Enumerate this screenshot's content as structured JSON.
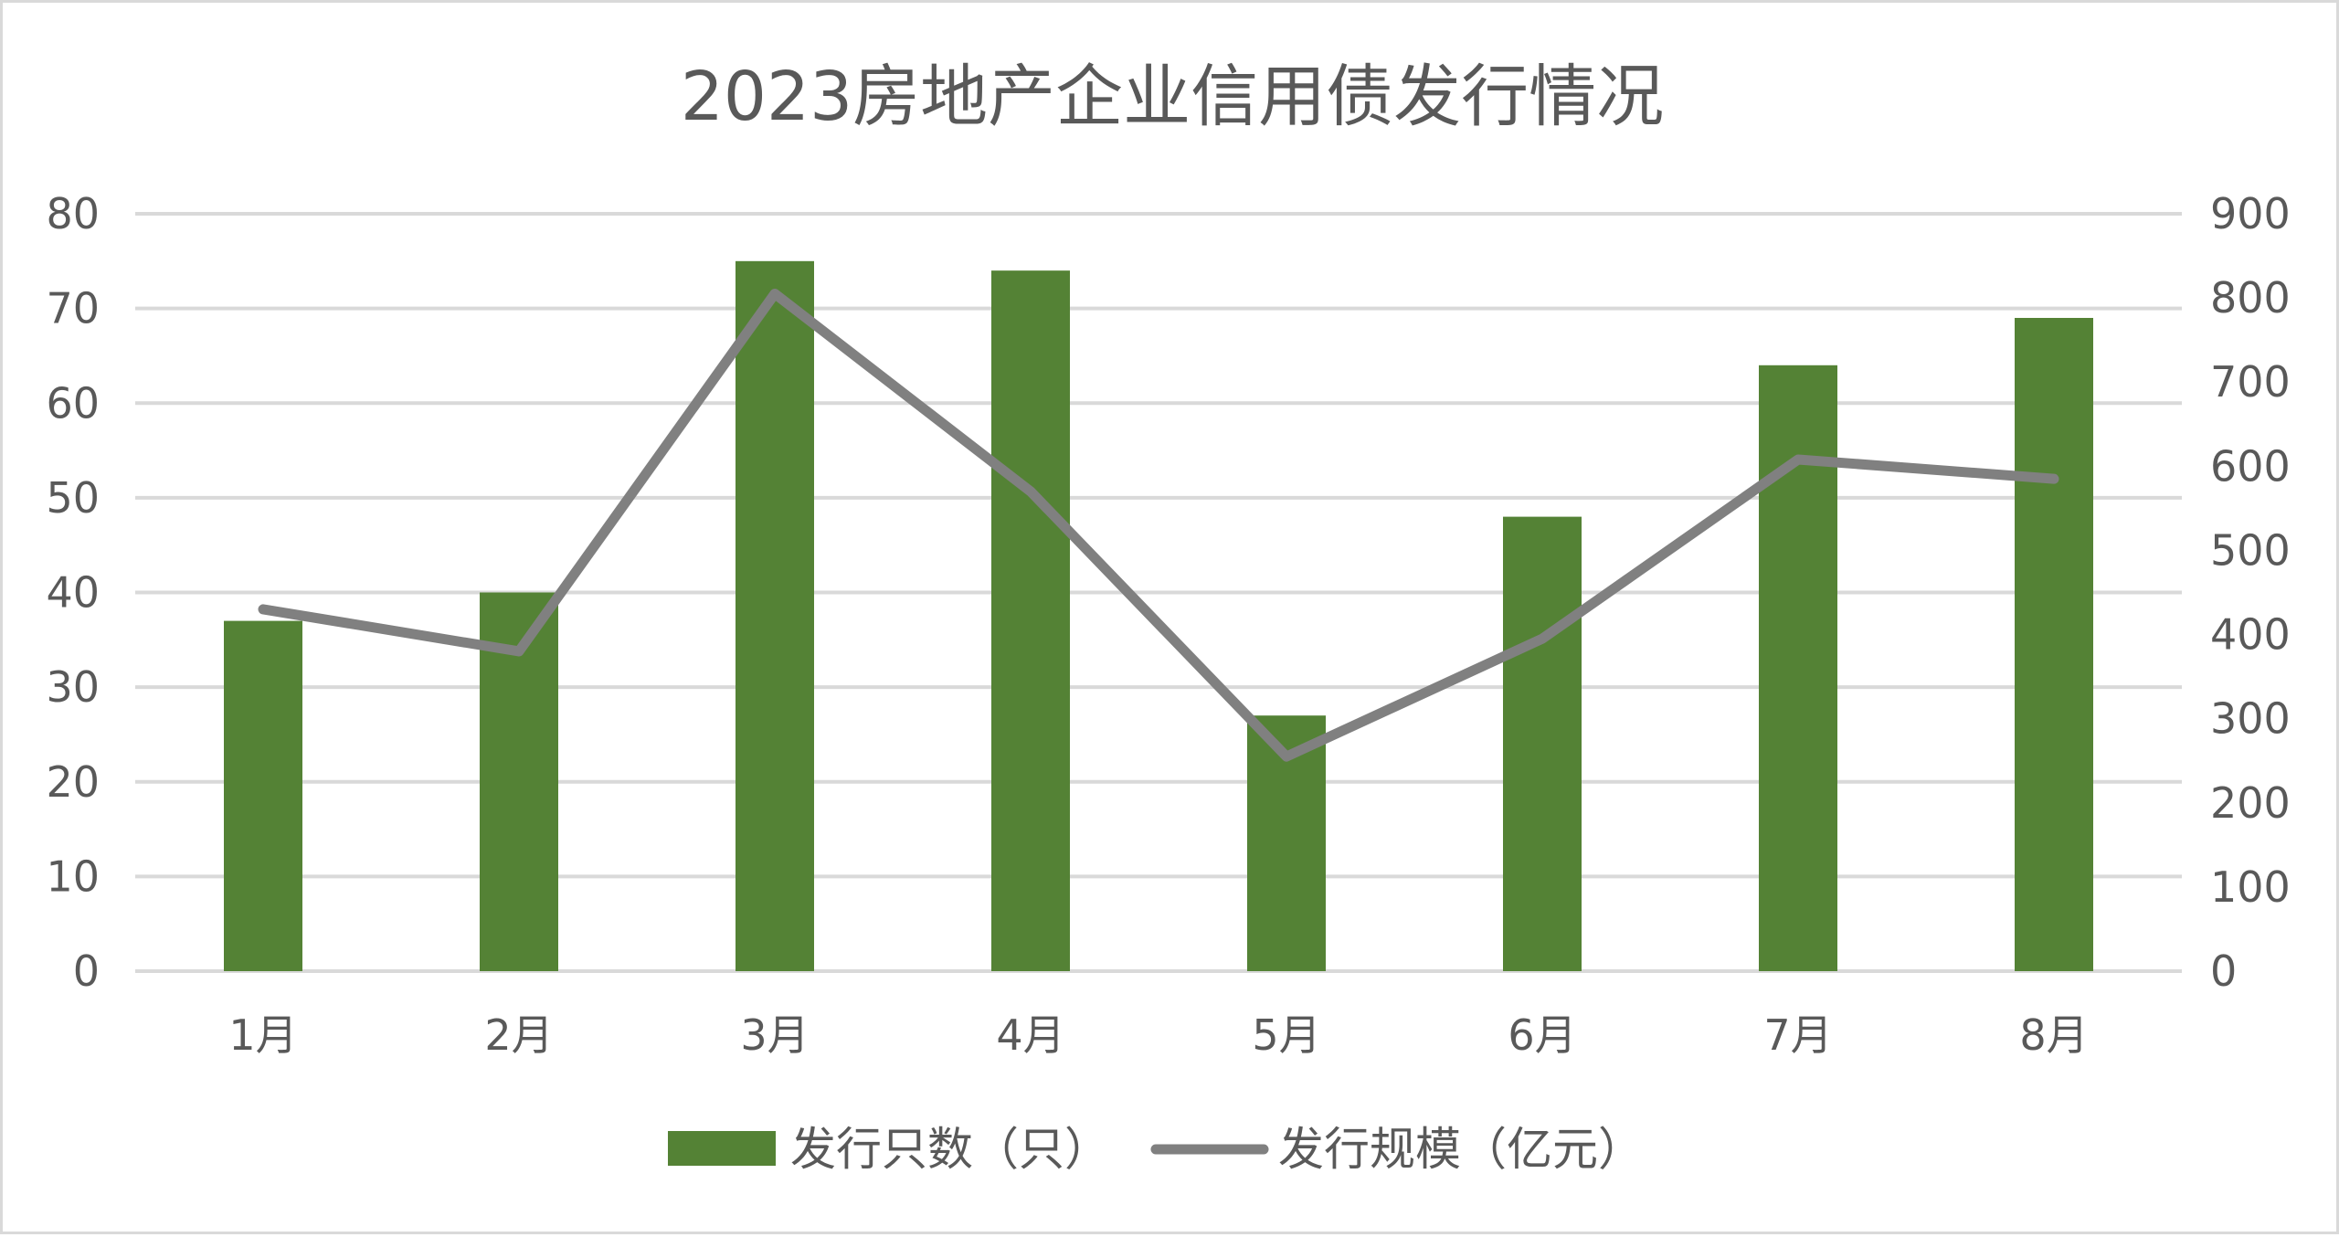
{
  "chart_data": {
    "type": "bar",
    "title": "2023房地产企业信用债发行情况",
    "categories": [
      "1月",
      "2月",
      "3月",
      "4月",
      "5月",
      "6月",
      "7月",
      "8月"
    ],
    "series": [
      {
        "name": "发行只数（只）",
        "type": "bar",
        "axis": "left",
        "values": [
          37,
          40,
          75,
          74,
          27,
          48,
          64,
          69
        ],
        "color": "#548235"
      },
      {
        "name": "发行规模（亿元）",
        "type": "line",
        "axis": "right",
        "values": [
          430,
          380,
          805,
          570,
          255,
          395,
          608,
          585
        ],
        "color": "#808080"
      }
    ],
    "y_left": {
      "range": [
        0,
        80
      ],
      "ticks": [
        "0",
        "10",
        "20",
        "30",
        "40",
        "50",
        "60",
        "70",
        "80"
      ]
    },
    "y_right": {
      "range": [
        0,
        900
      ],
      "ticks": [
        "0",
        "100",
        "200",
        "300",
        "400",
        "500",
        "600",
        "700",
        "800",
        "900"
      ]
    },
    "grid": true,
    "legend_position": "bottom"
  }
}
